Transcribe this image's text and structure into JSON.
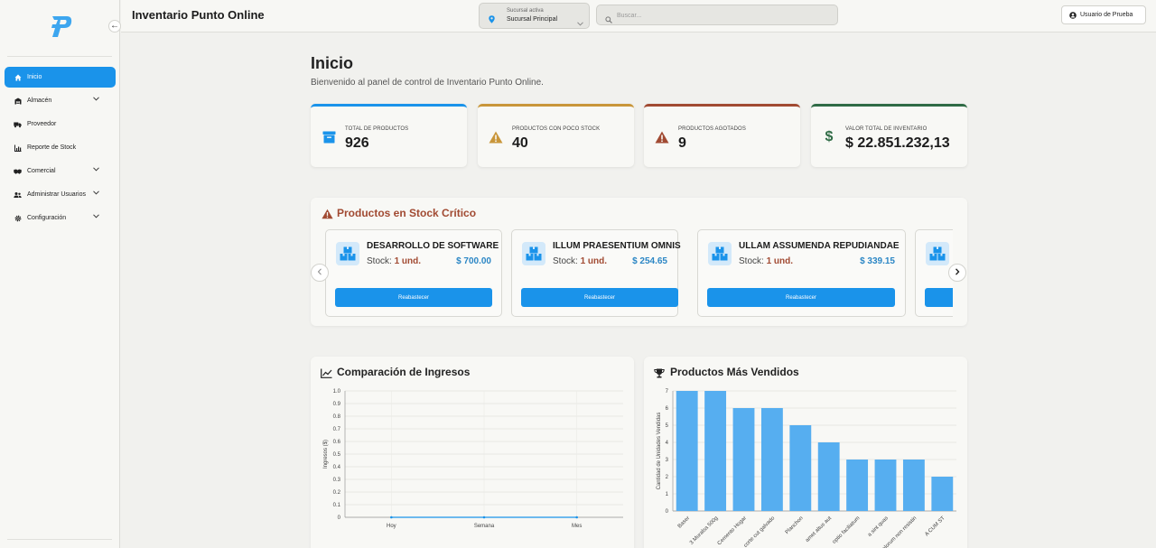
{
  "sidebar": {
    "collapse_icon": "arrow-left-icon",
    "items": [
      {
        "label": "Inicio",
        "icon": "home-icon",
        "active": true,
        "expandable": false
      },
      {
        "label": "Almacén",
        "icon": "warehouse-icon",
        "active": false,
        "expandable": true
      },
      {
        "label": "Proveedor",
        "icon": "truck-icon",
        "active": false,
        "expandable": false
      },
      {
        "label": "Reporte de Stock",
        "icon": "bar-report-icon",
        "active": false,
        "expandable": false
      },
      {
        "label": "Comercial",
        "icon": "handshake-icon",
        "active": false,
        "expandable": true
      },
      {
        "label": "Administrar Usuarios",
        "icon": "users-icon",
        "active": false,
        "expandable": true
      },
      {
        "label": "Configuración",
        "icon": "gear-icon",
        "active": false,
        "expandable": true
      }
    ]
  },
  "header": {
    "title": "Inventario Punto Online",
    "branch": {
      "label": "Sucursal activa",
      "value": "Sucursal Principal"
    },
    "search": {
      "placeholder": "Buscar...",
      "value": ""
    },
    "user": "Usuario de Prueba"
  },
  "main": {
    "title": "Inicio",
    "subtitle": "Bienvenido al panel de control de Inventario Punto Online.",
    "stats": [
      {
        "label": "Total de productos",
        "value": "926",
        "color": "#1a93ea",
        "icon": "archive-box-icon"
      },
      {
        "label": "Productos con poco stock",
        "value": "40",
        "color": "#c9963a",
        "icon": "warning-icon"
      },
      {
        "label": "Productos agotados",
        "value": "9",
        "color": "#a14a32",
        "icon": "warning-icon"
      },
      {
        "label": "Valor total de inventario",
        "value": "$ 22.851.232,13",
        "color": "#2f6b45",
        "icon": "dollar-icon"
      }
    ],
    "critical": {
      "title": "Productos en Stock Crítico",
      "stock_prefix": "Stock:",
      "products": [
        {
          "name": "DESARROLLO DE SOFTWARE",
          "stock": "1 und.",
          "price": "$ 700.00",
          "button": "Reabastecer"
        },
        {
          "name": "ILLUM PRAESENTIUM OMNIS",
          "stock": "1 und.",
          "price": "$ 254.65",
          "button": "Reabastecer"
        },
        {
          "name": "ULLAM ASSUMENDA REPUDIANDAE",
          "stock": "1 und.",
          "price": "$ 339.15",
          "button": "Reabastecer"
        },
        {
          "name": "",
          "stock": "",
          "price": "",
          "button": ""
        }
      ]
    }
  },
  "chart_data": [
    {
      "type": "line",
      "title": "Comparación de Ingresos",
      "ylabel": "Ingresos ($)",
      "categories": [
        "Hoy",
        "Semana",
        "Mes"
      ],
      "yticks": [
        "0",
        "0.1",
        "0.2",
        "0.3",
        "0.4",
        "0.5",
        "0.6",
        "0.7",
        "0.8",
        "0.9",
        "1.0"
      ],
      "ylim": [
        0,
        1
      ],
      "series": [
        {
          "values": [
            0,
            0,
            0
          ]
        }
      ],
      "grid": true,
      "icon": "line-chart-icon"
    },
    {
      "type": "bar",
      "title": "Productos Más Vendidos",
      "ylabel": "Cantidad de Unidades Vendidas",
      "categories": [
        "Baser",
        "3 Muralsa 500g",
        "Cemento Hogar",
        "corte cut galvado",
        "Planchon",
        "amet altus aut",
        "optio faciliatum",
        "a sint quas",
        "dolorum non resistin",
        "A CUM ST"
      ],
      "values": [
        7,
        7,
        6,
        6,
        5,
        4,
        3,
        3,
        3,
        2
      ],
      "ylim": [
        0,
        7
      ],
      "yticks": [
        "0",
        "1",
        "2",
        "3",
        "4",
        "5",
        "6",
        "7"
      ],
      "bar_color": "#56aef0",
      "grid": true,
      "icon": "trophy-icon"
    }
  ]
}
